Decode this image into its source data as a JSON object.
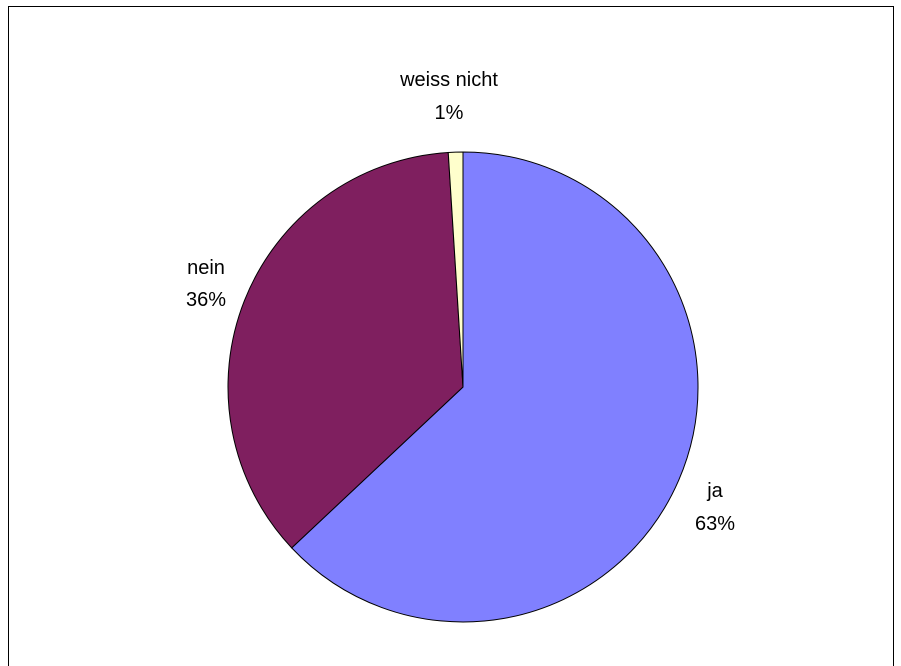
{
  "chart_data": {
    "type": "pie",
    "title": "",
    "slices": [
      {
        "name": "ja",
        "value": 63,
        "value_label": "63%",
        "color": "#8080ff"
      },
      {
        "name": "nein",
        "value": 36,
        "value_label": "36%",
        "color": "#7f1f5f"
      },
      {
        "name": "weiss nicht",
        "value": 1,
        "value_label": "1%",
        "color": "#ffffcc"
      }
    ],
    "start_angle": "12 o'clock",
    "direction": "clockwise",
    "edge_color": "#000000",
    "legend": "none"
  }
}
